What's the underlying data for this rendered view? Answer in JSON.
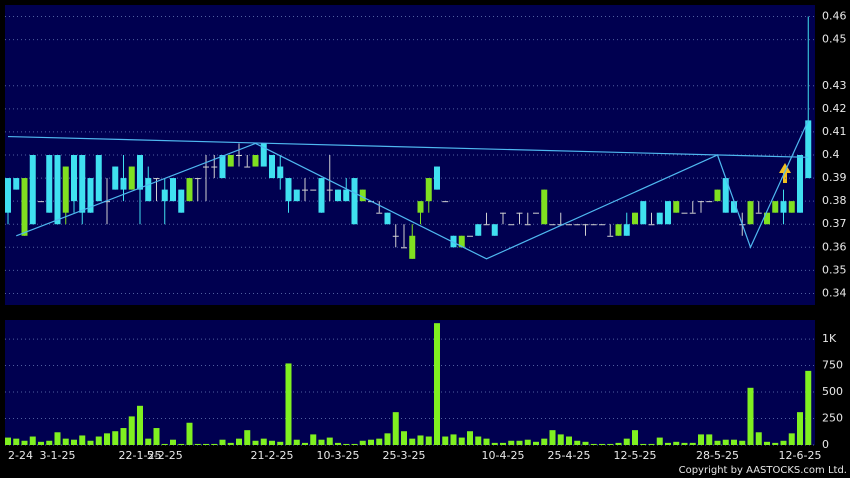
{
  "chart_data": [
    {
      "type": "candlestick",
      "up_color": "#80e020",
      "down_color": "#40e0f0",
      "flat_color": "#d0d0d0",
      "ylim": [
        0.335,
        0.465
      ],
      "yticks": [
        0.34,
        0.35,
        0.36,
        0.37,
        0.38,
        0.39,
        0.4,
        0.41,
        0.42,
        0.43,
        0.45,
        0.46
      ],
      "grid": true,
      "ohlc": [
        [
          0.39,
          0.39,
          0.37,
          0.375
        ],
        [
          0.39,
          0.39,
          0.385,
          0.385
        ],
        [
          0.365,
          0.39,
          0.365,
          0.39
        ],
        [
          0.4,
          0.4,
          0.37,
          0.37
        ],
        [
          0.38,
          0.38,
          0.38,
          0.38
        ],
        [
          0.4,
          0.4,
          0.375,
          0.375
        ],
        [
          0.4,
          0.4,
          0.37,
          0.37
        ],
        [
          0.375,
          0.395,
          0.37,
          0.395
        ],
        [
          0.4,
          0.4,
          0.375,
          0.38
        ],
        [
          0.4,
          0.4,
          0.37,
          0.375
        ],
        [
          0.39,
          0.39,
          0.375,
          0.375
        ],
        [
          0.4,
          0.4,
          0.38,
          0.38
        ],
        [
          0.38,
          0.39,
          0.37,
          0.38
        ],
        [
          0.395,
          0.395,
          0.385,
          0.385
        ],
        [
          0.39,
          0.4,
          0.38,
          0.385
        ],
        [
          0.385,
          0.395,
          0.385,
          0.395
        ],
        [
          0.4,
          0.4,
          0.37,
          0.385
        ],
        [
          0.39,
          0.395,
          0.38,
          0.38
        ],
        [
          0.39,
          0.39,
          0.38,
          0.39
        ],
        [
          0.385,
          0.39,
          0.37,
          0.38
        ],
        [
          0.39,
          0.39,
          0.38,
          0.38
        ],
        [
          0.385,
          0.385,
          0.375,
          0.375
        ],
        [
          0.38,
          0.39,
          0.38,
          0.39
        ],
        [
          0.39,
          0.39,
          0.38,
          0.39
        ],
        [
          0.395,
          0.4,
          0.38,
          0.395
        ],
        [
          0.395,
          0.4,
          0.39,
          0.395
        ],
        [
          0.4,
          0.4,
          0.39,
          0.39
        ],
        [
          0.395,
          0.4,
          0.395,
          0.4
        ],
        [
          0.4,
          0.405,
          0.395,
          0.4
        ],
        [
          0.395,
          0.4,
          0.395,
          0.395
        ],
        [
          0.395,
          0.4,
          0.395,
          0.4
        ],
        [
          0.405,
          0.405,
          0.395,
          0.395
        ],
        [
          0.4,
          0.4,
          0.39,
          0.39
        ],
        [
          0.395,
          0.4,
          0.385,
          0.39
        ],
        [
          0.39,
          0.39,
          0.375,
          0.38
        ],
        [
          0.385,
          0.385,
          0.38,
          0.38
        ],
        [
          0.385,
          0.39,
          0.38,
          0.385
        ],
        [
          0.385,
          0.385,
          0.385,
          0.385
        ],
        [
          0.39,
          0.39,
          0.375,
          0.375
        ],
        [
          0.385,
          0.4,
          0.38,
          0.385
        ],
        [
          0.385,
          0.385,
          0.38,
          0.38
        ],
        [
          0.385,
          0.39,
          0.38,
          0.38
        ],
        [
          0.39,
          0.39,
          0.37,
          0.37
        ],
        [
          0.38,
          0.385,
          0.38,
          0.385
        ],
        [
          0.38,
          0.38,
          0.38,
          0.38
        ],
        [
          0.375,
          0.38,
          0.375,
          0.375
        ],
        [
          0.375,
          0.375,
          0.37,
          0.37
        ],
        [
          0.365,
          0.37,
          0.36,
          0.365
        ],
        [
          0.36,
          0.37,
          0.36,
          0.36
        ],
        [
          0.355,
          0.37,
          0.355,
          0.365
        ],
        [
          0.375,
          0.38,
          0.37,
          0.38
        ],
        [
          0.38,
          0.39,
          0.375,
          0.39
        ],
        [
          0.395,
          0.395,
          0.385,
          0.385
        ],
        [
          0.38,
          0.38,
          0.38,
          0.38
        ],
        [
          0.365,
          0.365,
          0.36,
          0.36
        ],
        [
          0.36,
          0.365,
          0.36,
          0.365
        ],
        [
          0.365,
          0.365,
          0.365,
          0.365
        ],
        [
          0.37,
          0.37,
          0.365,
          0.365
        ],
        [
          0.37,
          0.375,
          0.37,
          0.37
        ],
        [
          0.37,
          0.37,
          0.365,
          0.365
        ],
        [
          0.375,
          0.375,
          0.37,
          0.375
        ],
        [
          0.37,
          0.37,
          0.37,
          0.37
        ],
        [
          0.375,
          0.375,
          0.37,
          0.375
        ],
        [
          0.37,
          0.375,
          0.37,
          0.37
        ],
        [
          0.375,
          0.375,
          0.375,
          0.375
        ],
        [
          0.37,
          0.385,
          0.37,
          0.385
        ],
        [
          0.37,
          0.37,
          0.37,
          0.37
        ],
        [
          0.37,
          0.375,
          0.37,
          0.37
        ],
        [
          0.37,
          0.37,
          0.37,
          0.37
        ],
        [
          0.37,
          0.37,
          0.37,
          0.37
        ],
        [
          0.37,
          0.37,
          0.365,
          0.37
        ],
        [
          0.37,
          0.37,
          0.37,
          0.37
        ],
        [
          0.37,
          0.37,
          0.37,
          0.37
        ],
        [
          0.365,
          0.37,
          0.365,
          0.365
        ],
        [
          0.365,
          0.37,
          0.365,
          0.37
        ],
        [
          0.37,
          0.375,
          0.365,
          0.365
        ],
        [
          0.37,
          0.375,
          0.37,
          0.375
        ],
        [
          0.38,
          0.38,
          0.37,
          0.37
        ],
        [
          0.37,
          0.375,
          0.37,
          0.37
        ],
        [
          0.375,
          0.375,
          0.37,
          0.37
        ],
        [
          0.38,
          0.38,
          0.37,
          0.37
        ],
        [
          0.375,
          0.38,
          0.375,
          0.38
        ],
        [
          0.375,
          0.375,
          0.375,
          0.375
        ],
        [
          0.375,
          0.38,
          0.375,
          0.375
        ],
        [
          0.38,
          0.38,
          0.375,
          0.38
        ],
        [
          0.38,
          0.38,
          0.38,
          0.38
        ],
        [
          0.38,
          0.385,
          0.38,
          0.385
        ],
        [
          0.39,
          0.39,
          0.375,
          0.375
        ],
        [
          0.38,
          0.38,
          0.375,
          0.375
        ],
        [
          0.37,
          0.375,
          0.365,
          0.37
        ],
        [
          0.37,
          0.38,
          0.37,
          0.38
        ],
        [
          0.375,
          0.38,
          0.375,
          0.375
        ],
        [
          0.37,
          0.375,
          0.37,
          0.375
        ],
        [
          0.375,
          0.38,
          0.375,
          0.38
        ],
        [
          0.38,
          0.385,
          0.37,
          0.375
        ],
        [
          0.375,
          0.38,
          0.375,
          0.38
        ],
        [
          0.4,
          0.4,
          0.375,
          0.375
        ],
        [
          0.415,
          0.46,
          0.39,
          0.39
        ]
      ],
      "lines": [
        {
          "color": "#4fb8f0",
          "x": [
            1,
            30,
            58,
            86,
            90,
            97
          ],
          "y": [
            0.365,
            0.405,
            0.355,
            0.4,
            0.36,
            0.415
          ]
        },
        {
          "color": "#4fb8f0",
          "x": [
            0,
            97
          ],
          "y": [
            0.408,
            0.399
          ]
        }
      ]
    },
    {
      "type": "bar",
      "color": "#80f020",
      "ylim": [
        0,
        1180
      ],
      "yticks": [
        0,
        250,
        500,
        750,
        {
          "value": 1000,
          "label": "1K"
        }
      ],
      "grid": true,
      "categories": [
        "2-24",
        null,
        null,
        null,
        null,
        null,
        "3-1-25",
        null,
        null,
        null,
        null,
        null,
        null,
        null,
        null,
        null,
        "22-1-25",
        null,
        null,
        "5-2-25",
        null,
        null,
        null,
        null,
        null,
        null,
        null,
        null,
        null,
        null,
        null,
        null,
        "21-2-25",
        null,
        null,
        null,
        null,
        null,
        null,
        null,
        "10-3-25",
        null,
        null,
        null,
        null,
        null,
        null,
        null,
        "25-3-25",
        null,
        null,
        null,
        null,
        null,
        null,
        null,
        null,
        null,
        null,
        null,
        "10-4-25",
        null,
        null,
        null,
        null,
        null,
        null,
        null,
        "25-4-25",
        null,
        null,
        null,
        null,
        null,
        null,
        null,
        "12-5-25",
        null,
        null,
        null,
        null,
        null,
        null,
        null,
        null,
        null,
        "28-5-25",
        null,
        null,
        null,
        null,
        null,
        null,
        null,
        null,
        null,
        "12-6-25",
        null
      ],
      "values": [
        70,
        60,
        40,
        80,
        30,
        40,
        120,
        60,
        50,
        90,
        40,
        80,
        110,
        130,
        160,
        270,
        370,
        60,
        160,
        10,
        50,
        10,
        210,
        10,
        10,
        10,
        50,
        20,
        60,
        140,
        40,
        60,
        40,
        30,
        770,
        50,
        20,
        100,
        50,
        70,
        20,
        10,
        10,
        40,
        50,
        60,
        110,
        310,
        130,
        60,
        90,
        80,
        1150,
        80,
        100,
        70,
        130,
        80,
        60,
        20,
        20,
        40,
        40,
        50,
        30,
        60,
        140,
        100,
        80,
        40,
        30,
        10,
        10,
        10,
        20,
        60,
        140,
        10,
        10,
        70,
        20,
        30,
        20,
        20,
        100,
        100,
        40,
        50,
        50,
        40,
        540,
        120,
        30,
        20,
        40,
        110,
        310,
        700
      ],
      "footer": "Copyright by AASTOCKS.com Ltd."
    }
  ]
}
